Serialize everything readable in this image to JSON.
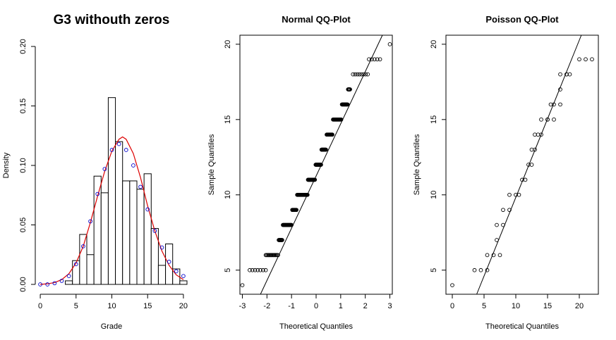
{
  "chart_data": [
    {
      "type": "bar",
      "title": "G3 withouth zeros",
      "xlabel": "Grade",
      "ylabel": "Density",
      "xlim": [
        -0.5,
        20.5
      ],
      "ylim": [
        0,
        0.2
      ],
      "x_ticks": [
        0,
        5,
        10,
        15,
        20
      ],
      "y_ticks": [
        0.0,
        0.05,
        0.1,
        0.15,
        0.2
      ],
      "y_tick_labels": [
        "0.00",
        "0.05",
        "0.10",
        "0.15",
        "0.20"
      ],
      "bins": [
        [
          3.5,
          4.5
        ],
        [
          4.5,
          5.5
        ],
        [
          5.5,
          6.5
        ],
        [
          6.5,
          7.5
        ],
        [
          7.5,
          8.5
        ],
        [
          8.5,
          9.5
        ],
        [
          9.5,
          10.5
        ],
        [
          10.5,
          11.5
        ],
        [
          11.5,
          12.5
        ],
        [
          12.5,
          13.5
        ],
        [
          13.5,
          14.5
        ],
        [
          14.5,
          15.5
        ],
        [
          15.5,
          16.5
        ],
        [
          16.5,
          17.5
        ],
        [
          17.5,
          18.5
        ],
        [
          18.5,
          19.5
        ],
        [
          19.5,
          20.5
        ]
      ],
      "values": [
        0.003,
        0.02,
        0.042,
        0.025,
        0.091,
        0.077,
        0.157,
        0.12,
        0.087,
        0.087,
        0.08,
        0.093,
        0.047,
        0.016,
        0.034,
        0.013,
        0.003
      ],
      "points": {
        "x": [
          0,
          1,
          2,
          3,
          4,
          5,
          6,
          7,
          8,
          9,
          10,
          11,
          12,
          13,
          14,
          15,
          16,
          17,
          18,
          19,
          20
        ],
        "y": [
          0.0,
          0.0,
          0.001,
          0.003,
          0.007,
          0.017,
          0.032,
          0.053,
          0.076,
          0.097,
          0.113,
          0.118,
          0.113,
          0.1,
          0.082,
          0.063,
          0.045,
          0.031,
          0.019,
          0.011,
          0.007
        ]
      },
      "curve": {
        "x": [
          0,
          1,
          2,
          3,
          4,
          5,
          6,
          7,
          8,
          9,
          10,
          11,
          11.5,
          12,
          13,
          14,
          15,
          16,
          17,
          18,
          19,
          20
        ],
        "y": [
          0.0,
          0.0005,
          0.0015,
          0.004,
          0.009,
          0.018,
          0.032,
          0.052,
          0.074,
          0.095,
          0.112,
          0.122,
          0.124,
          0.122,
          0.11,
          0.09,
          0.066,
          0.045,
          0.028,
          0.016,
          0.008,
          0.004
        ]
      },
      "colors": {
        "points": "#0000cc",
        "curve": "#dd0000"
      }
    },
    {
      "type": "scatter",
      "title": "Normal QQ-Plot",
      "xlabel": "Theoretical Quantiles",
      "ylabel": "Sample Quantiles",
      "xlim": [
        -3.1,
        3.1
      ],
      "ylim": [
        3.4,
        20.6
      ],
      "x_ticks": [
        -3,
        -2,
        -1,
        0,
        1,
        2,
        3
      ],
      "y_ticks": [
        5,
        10,
        15,
        20
      ],
      "segments": [
        {
          "y": 4,
          "x_from": -3.0,
          "x_to": -3.0,
          "n": 1
        },
        {
          "y": 5,
          "x_from": -2.7,
          "x_to": -2.05,
          "n": 7
        },
        {
          "y": 6,
          "x_from": -2.05,
          "x_to": -1.55,
          "n": 14
        },
        {
          "y": 7,
          "x_from": -1.52,
          "x_to": -1.38,
          "n": 8
        },
        {
          "y": 8,
          "x_from": -1.35,
          "x_to": -1.0,
          "n": 20
        },
        {
          "y": 9,
          "x_from": -0.97,
          "x_to": -0.8,
          "n": 12
        },
        {
          "y": 10,
          "x_from": -0.77,
          "x_to": -0.35,
          "n": 28
        },
        {
          "y": 11,
          "x_from": -0.33,
          "x_to": -0.05,
          "n": 18
        },
        {
          "y": 12,
          "x_from": -0.02,
          "x_to": 0.2,
          "n": 14
        },
        {
          "y": 13,
          "x_from": 0.22,
          "x_to": 0.4,
          "n": 12
        },
        {
          "y": 14,
          "x_from": 0.43,
          "x_to": 0.66,
          "n": 14
        },
        {
          "y": 15,
          "x_from": 0.69,
          "x_to": 1.02,
          "n": 20
        },
        {
          "y": 16,
          "x_from": 1.05,
          "x_to": 1.28,
          "n": 14
        },
        {
          "y": 17,
          "x_from": 1.3,
          "x_to": 1.38,
          "n": 5
        },
        {
          "y": 18,
          "x_from": 1.5,
          "x_to": 2.1,
          "n": 8
        },
        {
          "y": 19,
          "x_from": 2.15,
          "x_to": 2.6,
          "n": 5
        },
        {
          "y": 20,
          "x_from": 3.0,
          "x_to": 3.0,
          "n": 1
        }
      ],
      "reference_line": {
        "x1": -3.1,
        "y1": 0.5,
        "x2": 3.1,
        "y2": 22.0
      }
    },
    {
      "type": "scatter",
      "title": "Poisson QQ-Plot",
      "xlabel": "Theoretical Quantiles",
      "ylabel": "Sample Quantiles",
      "xlim": [
        -1,
        23
      ],
      "ylim": [
        3.4,
        20.6
      ],
      "x_ticks": [
        0,
        5,
        10,
        15,
        20
      ],
      "y_ticks": [
        5,
        10,
        15,
        20
      ],
      "points": {
        "x": [
          0,
          3.5,
          4.5,
          5.5,
          5.5,
          6.5,
          7.5,
          7,
          7,
          8,
          8,
          9,
          9,
          10,
          10.5,
          11,
          11.5,
          12,
          12.5,
          12.5,
          13,
          13,
          13.5,
          14,
          14,
          15,
          15,
          15.5,
          16,
          16,
          17,
          17,
          17,
          18,
          18,
          18.5,
          20,
          21,
          22
        ],
        "y": [
          4,
          5,
          5,
          5,
          6,
          6,
          6,
          7,
          8,
          8,
          9,
          9,
          10,
          10,
          10,
          11,
          11,
          12,
          12,
          13,
          13,
          14,
          14,
          14,
          15,
          15,
          15,
          16,
          15,
          16,
          16,
          17,
          18,
          18,
          18,
          18,
          19,
          19,
          19
        ]
      },
      "reference_line": {
        "x1": 2.5,
        "y1": 2.0,
        "x2": 20.7,
        "y2": 21.0
      }
    }
  ]
}
